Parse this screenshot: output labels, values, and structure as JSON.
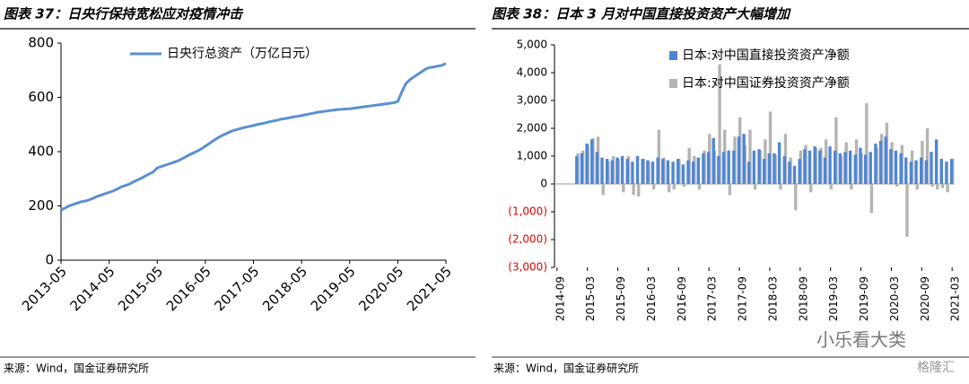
{
  "chart_data": [
    {
      "type": "line",
      "title": "图表 37：日央行保持宽松应对疫情冲击",
      "source": "来源：Wind，国金证券研究所",
      "x": [
        "2013-05",
        "2013-06",
        "2013-07",
        "2013-08",
        "2013-09",
        "2013-10",
        "2013-11",
        "2013-12",
        "2014-01",
        "2014-02",
        "2014-03",
        "2014-04",
        "2014-05",
        "2014-06",
        "2014-07",
        "2014-08",
        "2014-09",
        "2014-10",
        "2014-11",
        "2014-12",
        "2015-01",
        "2015-02",
        "2015-03",
        "2015-04",
        "2015-05",
        "2015-06",
        "2015-07",
        "2015-08",
        "2015-09",
        "2015-10",
        "2015-11",
        "2015-12",
        "2016-01",
        "2016-02",
        "2016-03",
        "2016-04",
        "2016-05",
        "2016-06",
        "2016-07",
        "2016-08",
        "2016-09",
        "2016-10",
        "2016-11",
        "2016-12",
        "2017-01",
        "2017-02",
        "2017-03",
        "2017-04",
        "2017-05",
        "2017-06",
        "2017-07",
        "2017-08",
        "2017-09",
        "2017-10",
        "2017-11",
        "2017-12",
        "2018-01",
        "2018-02",
        "2018-03",
        "2018-04",
        "2018-05",
        "2018-06",
        "2018-07",
        "2018-08",
        "2018-09",
        "2018-10",
        "2018-11",
        "2018-12",
        "2019-01",
        "2019-02",
        "2019-03",
        "2019-04",
        "2019-05",
        "2019-06",
        "2019-07",
        "2019-08",
        "2019-09",
        "2019-10",
        "2019-11",
        "2019-12",
        "2020-01",
        "2020-02",
        "2020-03",
        "2020-04",
        "2020-05",
        "2020-06",
        "2020-07",
        "2020-08",
        "2020-09",
        "2020-10",
        "2020-11",
        "2020-12",
        "2021-01",
        "2021-02",
        "2021-03",
        "2021-04",
        "2021-05"
      ],
      "series": [
        {
          "name": "日央行总资产（万亿日元）",
          "color": "#5b8fd1",
          "values": [
            185,
            192,
            200,
            205,
            210,
            215,
            218,
            222,
            228,
            235,
            240,
            245,
            250,
            255,
            262,
            270,
            275,
            280,
            288,
            295,
            302,
            310,
            318,
            325,
            340,
            345,
            350,
            355,
            360,
            365,
            372,
            380,
            388,
            395,
            402,
            410,
            420,
            430,
            440,
            450,
            458,
            465,
            472,
            478,
            482,
            486,
            490,
            493,
            496,
            500,
            503,
            506,
            510,
            513,
            516,
            520,
            522,
            525,
            528,
            530,
            533,
            536,
            539,
            542,
            545,
            547,
            549,
            551,
            553,
            555,
            556,
            557,
            558,
            560,
            562,
            564,
            566,
            568,
            570,
            572,
            574,
            576,
            578,
            580,
            585,
            620,
            650,
            665,
            675,
            685,
            695,
            705,
            710,
            712,
            715,
            718,
            725
          ]
        }
      ],
      "xticks": [
        "2013-05",
        "2014-05",
        "2015-05",
        "2016-05",
        "2017-05",
        "2018-05",
        "2019-05",
        "2020-05",
        "2021-05"
      ],
      "ylim": [
        0,
        800
      ],
      "yticks": [
        0,
        200,
        400,
        600,
        800
      ],
      "legend": "top"
    },
    {
      "type": "bar",
      "title": "图表 38：日本 3 月对中国直接投资资产大幅增加",
      "source": "来源：Wind，国金证券研究所",
      "watermark": "小乐看大类",
      "watermark2": "格隆汇",
      "x": [
        "2014-09",
        "2014-10",
        "2014-11",
        "2014-12",
        "2015-01",
        "2015-02",
        "2015-03",
        "2015-04",
        "2015-05",
        "2015-06",
        "2015-07",
        "2015-08",
        "2015-09",
        "2015-10",
        "2015-11",
        "2015-12",
        "2016-01",
        "2016-02",
        "2016-03",
        "2016-04",
        "2016-05",
        "2016-06",
        "2016-07",
        "2016-08",
        "2016-09",
        "2016-10",
        "2016-11",
        "2016-12",
        "2017-01",
        "2017-02",
        "2017-03",
        "2017-04",
        "2017-05",
        "2017-06",
        "2017-07",
        "2017-08",
        "2017-09",
        "2017-10",
        "2017-11",
        "2017-12",
        "2018-01",
        "2018-02",
        "2018-03",
        "2018-04",
        "2018-05",
        "2018-06",
        "2018-07",
        "2018-08",
        "2018-09",
        "2018-10",
        "2018-11",
        "2018-12",
        "2019-01",
        "2019-02",
        "2019-03",
        "2019-04",
        "2019-05",
        "2019-06",
        "2019-07",
        "2019-08",
        "2019-09",
        "2019-10",
        "2019-11",
        "2019-12",
        "2020-01",
        "2020-02",
        "2020-03",
        "2020-04",
        "2020-05",
        "2020-06",
        "2020-07",
        "2020-08",
        "2020-09",
        "2020-10",
        "2020-11",
        "2020-12",
        "2021-01",
        "2021-02",
        "2021-03"
      ],
      "series": [
        {
          "name": "日本:对中国证券投资资产净额",
          "color": "#b4b4b4",
          "values": [
            null,
            null,
            null,
            null,
            1100,
            1200,
            1400,
            1650,
            1700,
            -400,
            800,
            1000,
            900,
            -300,
            1000,
            -400,
            -450,
            900,
            800,
            -200,
            1950,
            950,
            -300,
            -200,
            900,
            -100,
            1300,
            1000,
            -200,
            1200,
            1800,
            1200,
            4300,
            1950,
            -400,
            1700,
            2400,
            1400,
            1950,
            -200,
            1200,
            1600,
            2600,
            1050,
            -200,
            1800,
            950,
            -950,
            1200,
            1400,
            -300,
            1300,
            1300,
            1600,
            -200,
            2400,
            1000,
            1500,
            -200,
            1600,
            1100,
            2900,
            -1050,
            1300,
            1800,
            2200,
            1500,
            -100,
            1400,
            -1900,
            1200,
            -200,
            1550,
            2000,
            -100,
            -200,
            -150,
            -300,
            900
          ]
        },
        {
          "name": "日本:对中国直接投资资产净额",
          "color": "#4f86d4",
          "values": [
            null,
            null,
            null,
            null,
            1000,
            1100,
            1450,
            1600,
            1150,
            950,
            900,
            850,
            950,
            1000,
            900,
            800,
            1000,
            900,
            850,
            800,
            950,
            900,
            850,
            800,
            900,
            700,
            850,
            800,
            950,
            1100,
            1150,
            1650,
            1000,
            1150,
            1200,
            1200,
            1700,
            1800,
            800,
            1200,
            1250,
            900,
            1100,
            1100,
            1500,
            1000,
            800,
            650,
            900,
            1250,
            1200,
            1350,
            1200,
            950,
            1350,
            1200,
            1100,
            1150,
            1200,
            1050,
            1300,
            1050,
            1150,
            1450,
            1550,
            1700,
            1250,
            1200,
            1100,
            950,
            800,
            850,
            950,
            850,
            1150,
            1600,
            900,
            800,
            900
          ]
        }
      ],
      "xticks": [
        "2014-09",
        "2015-03",
        "2015-09",
        "2016-03",
        "2016-09",
        "2017-03",
        "2017-09",
        "2018-03",
        "2018-09",
        "2019-03",
        "2019-09",
        "2020-03",
        "2020-09",
        "2021-03"
      ],
      "ylim": [
        -3000,
        5000
      ],
      "yticks": [
        {
          "value": -3000,
          "label": "(3,000)"
        },
        {
          "value": -2000,
          "label": "(2,000)"
        },
        {
          "value": -1000,
          "label": "(1,000)"
        },
        0,
        {
          "value": 1000,
          "label": "1,000"
        },
        {
          "value": 2000,
          "label": "2,000"
        },
        {
          "value": 3000,
          "label": "3,000"
        },
        {
          "value": 4000,
          "label": "4,000"
        },
        {
          "value": 5000,
          "label": "5,000"
        }
      ],
      "negative_tick_color": "#e00000",
      "legend": "top-left"
    }
  ]
}
